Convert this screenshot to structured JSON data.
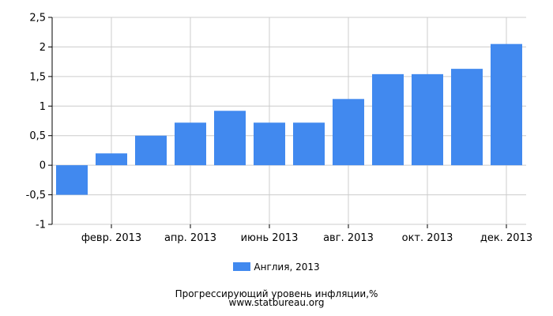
{
  "chart_data": {
    "type": "bar",
    "categories": [
      "",
      "февр. 2013",
      "",
      "апр. 2013",
      "",
      "июнь 2013",
      "",
      "авг. 2013",
      "",
      "окт. 2013",
      "",
      "дек. 2013"
    ],
    "series": [
      {
        "name": "Англия, 2013",
        "values": [
          -0.5,
          0.2,
          0.5,
          0.72,
          0.92,
          0.72,
          0.72,
          1.12,
          1.54,
          1.54,
          1.63,
          2.05
        ],
        "color": "#4189ef"
      }
    ],
    "ylim": [
      -1,
      2.5
    ],
    "yticks": [
      -1,
      -0.5,
      0,
      0.5,
      1,
      1.5,
      2,
      2.5
    ],
    "ytick_labels": [
      "-1",
      "-0,5",
      "0",
      "0,5",
      "1",
      "1,5",
      "2",
      "2,5"
    ],
    "grid": true,
    "legend": "bottom",
    "title": "Прогрессирующий уровень инфляции,%",
    "source": "www.statbureau.org",
    "colors": {
      "bar": "#4189ef",
      "grid": "#cccccc",
      "axis": "#000000"
    }
  }
}
